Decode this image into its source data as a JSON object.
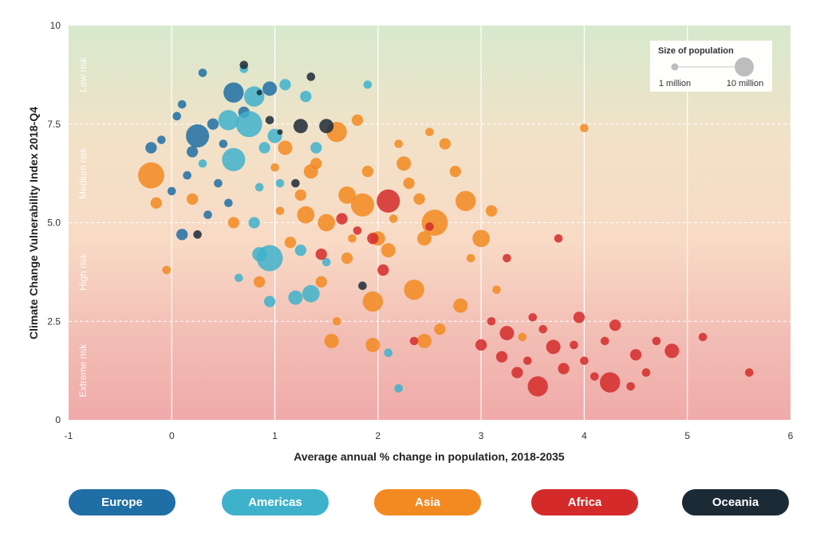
{
  "chart_data": {
    "type": "scatter",
    "xlabel": "Average annual % change in population, 2018-2035",
    "ylabel": "Climate Change Vulnerability Index 2018-Q4",
    "xlim": [
      -1,
      6
    ],
    "ylim": [
      0,
      10
    ],
    "x_ticks": [
      "-1",
      "0",
      "1",
      "2",
      "3",
      "4",
      "5",
      "6"
    ],
    "y_ticks": [
      "0",
      "2.5",
      "5.0",
      "7.5",
      "10"
    ],
    "grid": "vertical solid, horizontal dashed",
    "risk_bands": [
      {
        "label": "Low risk",
        "range": [
          7.5,
          10
        ]
      },
      {
        "label": "Medium risk",
        "range": [
          5.0,
          7.5
        ]
      },
      {
        "label": "High risk",
        "range": [
          2.5,
          5.0
        ]
      },
      {
        "label": "Extreme risk",
        "range": [
          0,
          2.5
        ]
      }
    ],
    "size_legend": {
      "title": "Size of population",
      "small_label": "1 million",
      "large_label": "10 million",
      "placement": "top-right"
    },
    "series": [
      {
        "name": "Europe",
        "color": "#1f6ea5",
        "points": [
          [
            0.6,
            8.3,
            6
          ],
          [
            0.25,
            7.2,
            7
          ],
          [
            0.95,
            8.4,
            4
          ],
          [
            0.1,
            8.0,
            2
          ],
          [
            0.4,
            7.5,
            3
          ],
          [
            0.2,
            6.8,
            3
          ],
          [
            0.05,
            7.7,
            2
          ],
          [
            0.3,
            8.8,
            2
          ],
          [
            0.5,
            7.0,
            2
          ],
          [
            0.1,
            4.7,
            3
          ],
          [
            -0.2,
            6.9,
            3
          ],
          [
            0.35,
            5.2,
            2
          ],
          [
            0.15,
            6.2,
            2
          ],
          [
            0.45,
            6.0,
            2
          ],
          [
            -0.1,
            7.1,
            2
          ],
          [
            0.7,
            7.8,
            3
          ],
          [
            0.0,
            5.8,
            2
          ],
          [
            0.55,
            5.5,
            2
          ]
        ]
      },
      {
        "name": "Americas",
        "color": "#3fb2cb",
        "points": [
          [
            0.6,
            6.6,
            7
          ],
          [
            0.95,
            4.1,
            8
          ],
          [
            0.8,
            8.2,
            6
          ],
          [
            0.55,
            7.6,
            6
          ],
          [
            0.75,
            7.5,
            8
          ],
          [
            1.0,
            7.2,
            4
          ],
          [
            1.35,
            3.2,
            5
          ],
          [
            1.2,
            3.1,
            4
          ],
          [
            0.85,
            4.2,
            4
          ],
          [
            1.1,
            8.5,
            3
          ],
          [
            0.8,
            5.0,
            3
          ],
          [
            1.3,
            8.2,
            3
          ],
          [
            1.25,
            4.3,
            3
          ],
          [
            0.9,
            6.9,
            3
          ],
          [
            1.05,
            6.0,
            2
          ],
          [
            0.3,
            6.5,
            2
          ],
          [
            0.7,
            8.9,
            2
          ],
          [
            1.9,
            8.5,
            2
          ],
          [
            1.4,
            6.9,
            3
          ],
          [
            0.85,
            5.9,
            2
          ],
          [
            2.1,
            1.7,
            2
          ],
          [
            2.2,
            0.8,
            2
          ],
          [
            0.95,
            3.0,
            3
          ],
          [
            1.5,
            4.0,
            2
          ],
          [
            0.65,
            3.6,
            2
          ]
        ]
      },
      {
        "name": "Asia",
        "color": "#f28a21",
        "points": [
          [
            -0.2,
            6.2,
            8
          ],
          [
            2.55,
            5.0,
            8
          ],
          [
            1.85,
            5.45,
            7
          ],
          [
            2.85,
            5.55,
            6
          ],
          [
            2.35,
            3.3,
            6
          ],
          [
            1.6,
            7.3,
            6
          ],
          [
            1.3,
            5.2,
            5
          ],
          [
            1.5,
            5.0,
            5
          ],
          [
            1.95,
            3.0,
            6
          ],
          [
            3.0,
            4.6,
            5
          ],
          [
            2.0,
            4.6,
            4
          ],
          [
            1.1,
            6.9,
            4
          ],
          [
            1.7,
            5.7,
            5
          ],
          [
            1.35,
            6.3,
            4
          ],
          [
            2.25,
            6.5,
            4
          ],
          [
            2.45,
            4.6,
            4
          ],
          [
            2.8,
            2.9,
            4
          ],
          [
            1.95,
            1.9,
            4
          ],
          [
            1.55,
            2.0,
            4
          ],
          [
            2.45,
            2.0,
            4
          ],
          [
            2.1,
            4.3,
            4
          ],
          [
            1.7,
            4.1,
            3
          ],
          [
            2.3,
            6.0,
            3
          ],
          [
            2.65,
            7.0,
            3
          ],
          [
            1.9,
            6.3,
            3
          ],
          [
            1.45,
            3.5,
            3
          ],
          [
            1.15,
            4.5,
            3
          ],
          [
            2.75,
            6.3,
            3
          ],
          [
            3.1,
            5.3,
            3
          ],
          [
            0.6,
            5.0,
            3
          ],
          [
            -0.15,
            5.5,
            3
          ],
          [
            0.85,
            3.5,
            3
          ],
          [
            2.6,
            2.3,
            3
          ],
          [
            1.8,
            7.6,
            3
          ],
          [
            1.25,
            5.7,
            3
          ],
          [
            0.2,
            5.6,
            3
          ],
          [
            1.4,
            6.5,
            3
          ],
          [
            2.4,
            5.6,
            3
          ],
          [
            2.5,
            7.3,
            2
          ],
          [
            3.15,
            3.3,
            2
          ],
          [
            1.6,
            2.5,
            2
          ],
          [
            2.15,
            5.1,
            2
          ],
          [
            1.0,
            6.4,
            2
          ],
          [
            -0.05,
            3.8,
            2
          ],
          [
            3.4,
            2.1,
            2
          ],
          [
            4.0,
            7.4,
            2
          ],
          [
            1.75,
            4.6,
            2
          ],
          [
            2.9,
            4.1,
            2
          ],
          [
            2.2,
            7.0,
            2
          ],
          [
            1.05,
            5.3,
            2
          ]
        ]
      },
      {
        "name": "Africa",
        "color": "#d42b2a",
        "points": [
          [
            2.1,
            5.55,
            7
          ],
          [
            3.55,
            0.85,
            6
          ],
          [
            4.25,
            0.95,
            6
          ],
          [
            3.7,
            1.85,
            4
          ],
          [
            3.25,
            2.2,
            4
          ],
          [
            4.85,
            1.75,
            4
          ],
          [
            3.95,
            2.6,
            3
          ],
          [
            1.95,
            4.6,
            3
          ],
          [
            2.05,
            3.8,
            3
          ],
          [
            3.2,
            1.6,
            3
          ],
          [
            4.5,
            1.65,
            3
          ],
          [
            3.8,
            1.3,
            3
          ],
          [
            3.0,
            1.9,
            3
          ],
          [
            1.45,
            4.2,
            3
          ],
          [
            1.65,
            5.1,
            3
          ],
          [
            4.3,
            2.4,
            3
          ],
          [
            3.35,
            1.2,
            3
          ],
          [
            3.6,
            2.3,
            2
          ],
          [
            4.1,
            1.1,
            2
          ],
          [
            3.45,
            1.5,
            2
          ],
          [
            4.7,
            2.0,
            2
          ],
          [
            5.15,
            2.1,
            2
          ],
          [
            5.6,
            1.2,
            2
          ],
          [
            3.25,
            4.1,
            2
          ],
          [
            2.35,
            2.0,
            2
          ],
          [
            4.0,
            1.5,
            2
          ],
          [
            3.75,
            4.6,
            2
          ],
          [
            4.45,
            0.85,
            2
          ],
          [
            3.9,
            1.9,
            2
          ],
          [
            2.5,
            4.9,
            2
          ],
          [
            4.6,
            1.2,
            2
          ],
          [
            3.1,
            2.5,
            2
          ],
          [
            1.8,
            4.8,
            2
          ],
          [
            4.2,
            2.0,
            2
          ],
          [
            3.5,
            2.6,
            2
          ]
        ]
      },
      {
        "name": "Oceania",
        "color": "#1c2a36",
        "points": [
          [
            1.25,
            7.45,
            4
          ],
          [
            1.5,
            7.45,
            4
          ],
          [
            1.2,
            6.0,
            2
          ],
          [
            1.85,
            3.4,
            2
          ],
          [
            0.25,
            4.7,
            2
          ],
          [
            0.95,
            7.6,
            2
          ],
          [
            1.35,
            8.7,
            2
          ],
          [
            0.7,
            9.0,
            2
          ],
          [
            1.05,
            7.3,
            1
          ],
          [
            0.85,
            8.3,
            1
          ]
        ]
      }
    ]
  },
  "legend": {
    "europe": "Europe",
    "americas": "Americas",
    "asia": "Asia",
    "africa": "Africa",
    "oceania": "Oceania"
  }
}
